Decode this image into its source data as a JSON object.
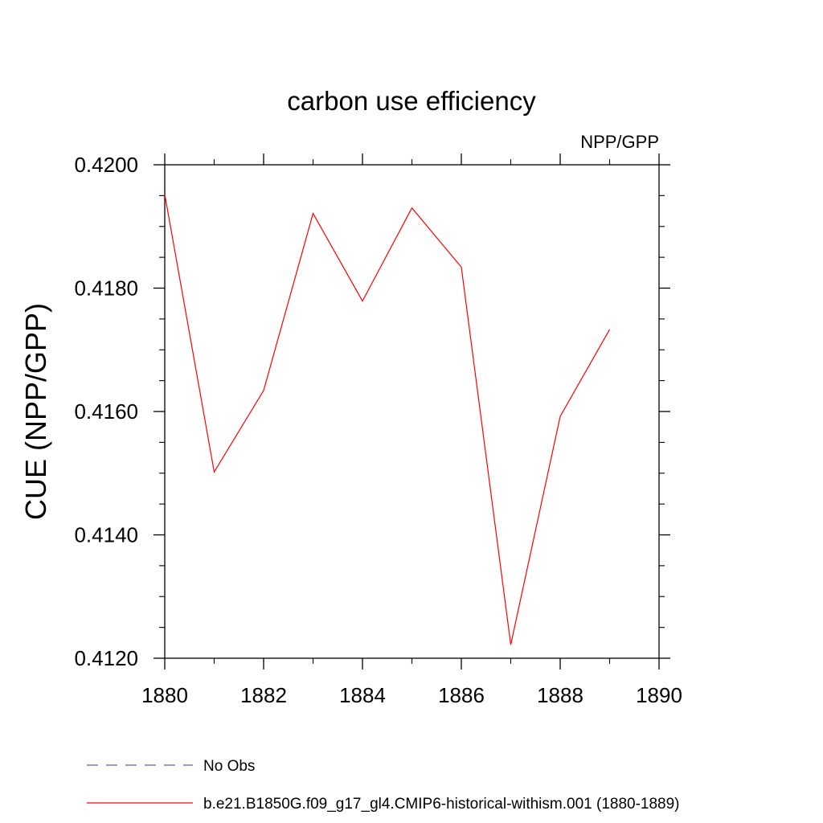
{
  "chart_data": {
    "type": "line",
    "title": "carbon use efficiency",
    "subtitle": "NPP/GPP",
    "xlabel": "",
    "ylabel": "CUE  (NPP/GPP)",
    "xlim": [
      1880,
      1890
    ],
    "ylim": [
      0.412,
      0.42
    ],
    "x_ticks": [
      "1880",
      "1882",
      "1884",
      "1886",
      "1888",
      "1890"
    ],
    "y_ticks": [
      "0.4120",
      "0.4140",
      "0.4160",
      "0.4180",
      "0.4200"
    ],
    "grid": false,
    "legend_position": "bottom",
    "series": [
      {
        "name": "No Obs",
        "color": "#6a5acd",
        "style": "dashed",
        "x": [],
        "y": []
      },
      {
        "name": "b.e21.B1850G.f09_g17_gl4.CMIP6-historical-withism.001 (1880-1889)",
        "color": "#ff0000",
        "style": "solid",
        "x": [
          1880,
          1881,
          1882,
          1883,
          1884,
          1885,
          1886,
          1887,
          1888,
          1889
        ],
        "y": [
          0.41952,
          0.41502,
          0.41634,
          0.41921,
          0.41779,
          0.4193,
          0.41834,
          0.41222,
          0.41592,
          0.41733
        ]
      }
    ]
  }
}
